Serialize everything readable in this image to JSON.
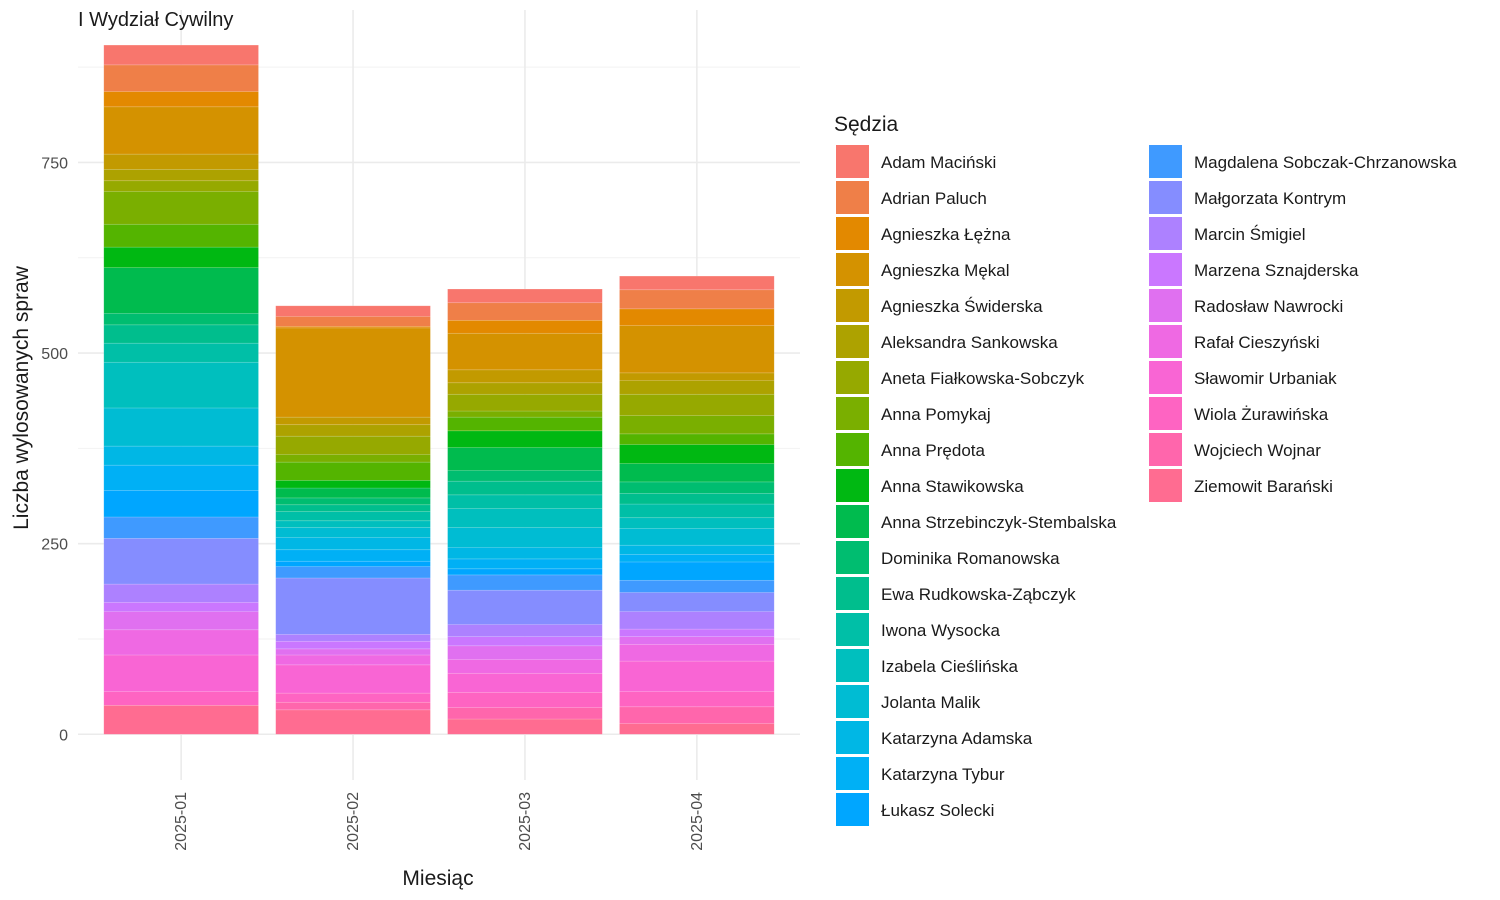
{
  "chart_data": {
    "type": "bar",
    "stacked": true,
    "title": "I Wydział Cywilny",
    "xlabel": "Miesiąc",
    "ylabel": "Liczba wylosowanych spraw",
    "ylim": [
      -60,
      950
    ],
    "yticks": [
      0,
      250,
      500,
      750
    ],
    "grid": true,
    "legend_title": "Sędzia",
    "legend_position": "right",
    "categories": [
      "2025-01",
      "2025-02",
      "2025-03",
      "2025-04"
    ],
    "series": [
      {
        "name": "Adam Maciński",
        "color": "#F8766D",
        "values": [
          26,
          14,
          18,
          18
        ]
      },
      {
        "name": "Adrian Paluch",
        "color": "#EF7F48",
        "values": [
          35,
          13,
          23,
          25
        ]
      },
      {
        "name": "Agnieszka Łężna",
        "color": "#E38900",
        "values": [
          20,
          2,
          17,
          22
        ]
      },
      {
        "name": "Agnieszka Mękal",
        "color": "#D49200",
        "values": [
          62,
          117,
          48,
          62
        ]
      },
      {
        "name": "Agnieszka Świderska",
        "color": "#C29A00",
        "values": [
          20,
          10,
          17,
          10
        ]
      },
      {
        "name": "Aleksandra Sankowska",
        "color": "#ADA200",
        "values": [
          15,
          15,
          15,
          18
        ]
      },
      {
        "name": "Aneta Fiałkowska-Sobczyk",
        "color": "#96A900",
        "values": [
          14,
          24,
          22,
          28
        ]
      },
      {
        "name": "Anna Pomykaj",
        "color": "#7AAF00",
        "values": [
          43,
          10,
          8,
          24
        ]
      },
      {
        "name": "Anna Prędota",
        "color": "#54B400",
        "values": [
          30,
          24,
          18,
          14
        ]
      },
      {
        "name": "Anna Stawikowska",
        "color": "#00B812",
        "values": [
          27,
          10,
          22,
          25
        ]
      },
      {
        "name": "Anna Strzebinczyk-Stembalska",
        "color": "#00BB4E",
        "values": [
          60,
          13,
          30,
          24
        ]
      },
      {
        "name": "Dominika Romanowska",
        "color": "#00BD70",
        "values": [
          15,
          9,
          14,
          15
        ]
      },
      {
        "name": "Ewa Rudkowska-Ząbczyk",
        "color": "#00BE8D",
        "values": [
          24,
          9,
          18,
          14
        ]
      },
      {
        "name": "Iwona Wysocka",
        "color": "#00BFA7",
        "values": [
          25,
          12,
          18,
          18
        ]
      },
      {
        "name": "Izabela Cieślińska",
        "color": "#00BFBE",
        "values": [
          60,
          9,
          25,
          14
        ]
      },
      {
        "name": "Jolanta Malik",
        "color": "#00BCD3",
        "values": [
          50,
          13,
          26,
          22
        ]
      },
      {
        "name": "Katarzyna Adamska",
        "color": "#00B7E5",
        "values": [
          25,
          16,
          15,
          12
        ]
      },
      {
        "name": "Katarzyna Tybur",
        "color": "#00B0F5",
        "values": [
          33,
          15,
          13,
          10
        ]
      },
      {
        "name": "Łukasz Solecki",
        "color": "#00A6FF",
        "values": [
          35,
          7,
          8,
          24
        ]
      },
      {
        "name": "Magdalena Sobczak-Chrzanowska",
        "color": "#3F9AFF",
        "values": [
          28,
          15,
          20,
          16
        ]
      },
      {
        "name": "Małgorzata Kontrym",
        "color": "#858DFF",
        "values": [
          60,
          74,
          45,
          25
        ]
      },
      {
        "name": "Marcin Śmigiel",
        "color": "#AD81FF",
        "values": [
          24,
          9,
          16,
          23
        ]
      },
      {
        "name": "Marzena Sznajderska",
        "color": "#CA77FF",
        "values": [
          12,
          10,
          12,
          10
        ]
      },
      {
        "name": "Radosław Nawrocki",
        "color": "#E070F0",
        "values": [
          24,
          8,
          18,
          10
        ]
      },
      {
        "name": "Rafał Cieszyński",
        "color": "#EF69E3",
        "values": [
          33,
          13,
          18,
          22
        ]
      },
      {
        "name": "Sławomir Urbaniak",
        "color": "#F965D4",
        "values": [
          48,
          37,
          25,
          40
        ]
      },
      {
        "name": "Wiola Żurawińska",
        "color": "#FE64C2",
        "values": [
          18,
          12,
          20,
          20
        ]
      },
      {
        "name": "Wojciech Wojnar",
        "color": "#FF66AC",
        "values": [
          0,
          10,
          15,
          22
        ]
      },
      {
        "name": "Ziemowit Barański",
        "color": "#FF6C91",
        "values": [
          38,
          32,
          20,
          14
        ]
      }
    ]
  }
}
